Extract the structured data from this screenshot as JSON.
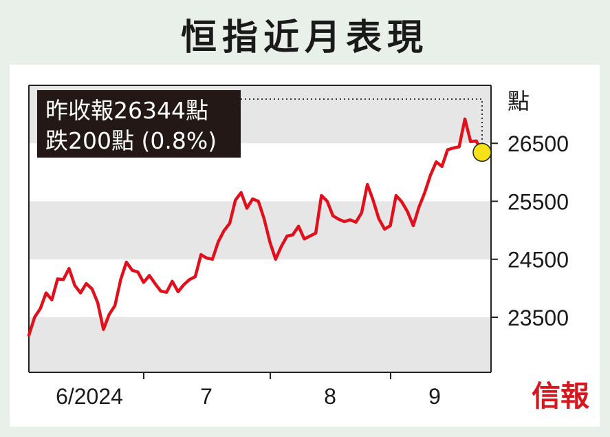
{
  "title": "恒指近月表現",
  "brand": "信報",
  "annotation": {
    "line1": "昨收報26344點",
    "line2": "跌200點 (0.8%)"
  },
  "colors": {
    "line": "#e0101c",
    "highlight": "#f7e219",
    "band": "#e6e6e6",
    "annotation_bg": "#231816"
  },
  "chart_data": {
    "type": "line",
    "title": "恒指近月表現",
    "ylabel": "點",
    "yticks": [
      23500,
      24500,
      25500,
      26500
    ],
    "ylim": [
      22550,
      27500
    ],
    "grid": false,
    "x_labels": [
      "6/2024",
      "7",
      "8",
      "9"
    ],
    "series": [
      {
        "values": [
          23190,
          23500,
          23650,
          23920,
          23800,
          24160,
          24150,
          24340,
          24050,
          23920,
          24080,
          23990,
          23750,
          23290,
          23550,
          23700,
          24150,
          24450,
          24310,
          24280,
          24100,
          24220,
          24080,
          23950,
          23930,
          24120,
          23940,
          24060,
          24150,
          24200,
          24580,
          24520,
          24500,
          24800,
          24990,
          25120,
          25520,
          25650,
          25380,
          25540,
          25500,
          25200,
          24800,
          24500,
          24720,
          24900,
          24920,
          25070,
          24850,
          24900,
          24950,
          25600,
          25500,
          25250,
          25190,
          25150,
          25180,
          25140,
          25300,
          25790,
          25520,
          25200,
          25020,
          25080,
          25600,
          25490,
          25320,
          25080,
          25400,
          25650,
          25950,
          26180,
          26100,
          26390,
          26420,
          26440,
          26920,
          26530,
          26540,
          26344
        ]
      }
    ],
    "last_value": 26344
  }
}
